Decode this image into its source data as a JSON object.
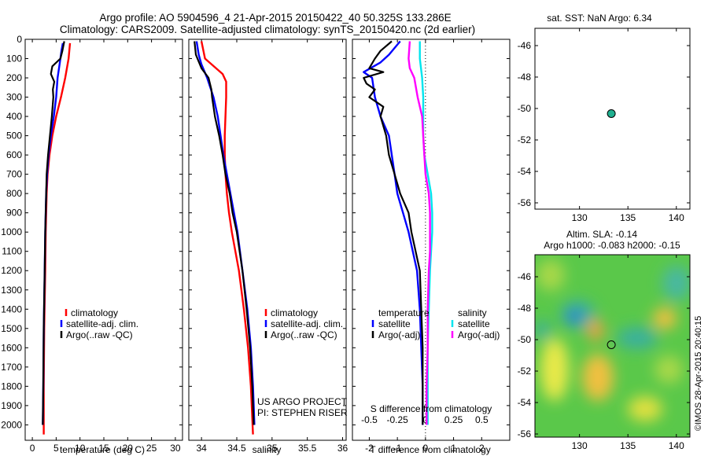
{
  "header": {
    "line1": "Argo profile: AO 5904596_4 21-Apr-2015 20150422_40 50.325S 133.286E",
    "line2": "Climatology: CARS2009. Satellite-adjusted climatology: synTS_20150420.nc (2d earlier)"
  },
  "colors": {
    "climatology": "#ff0000",
    "satellite": "#0000ff",
    "argo": "#000000",
    "sal_satellite": "#00e5ee",
    "sal_argo": "#ff00ff",
    "marker": "#20b090"
  },
  "chart_data": [
    {
      "id": "temperature",
      "type": "line",
      "xlabel": "temperature (deg C)",
      "ylabel": "",
      "xlim": [
        -1.5,
        31.5
      ],
      "ylim": [
        2080,
        0
      ],
      "x_ticks": [
        "0",
        "5",
        "10",
        "15",
        "20",
        "25",
        "30"
      ],
      "y_ticks": [
        "0",
        "100",
        "200",
        "300",
        "400",
        "500",
        "600",
        "700",
        "800",
        "900",
        "1000",
        "1100",
        "1200",
        "1300",
        "1400",
        "1500",
        "1600",
        "1700",
        "1800",
        "1900",
        "2000"
      ],
      "legend": [
        "climatology",
        "satellite-adj. clim.",
        "Argo(..raw -QC)"
      ],
      "series": [
        {
          "name": "climatology",
          "color": "red",
          "depth": [
            20,
            100,
            200,
            300,
            400,
            500,
            600,
            700,
            800,
            1000,
            1200,
            1500,
            1800,
            2050
          ],
          "values": [
            7.9,
            7.6,
            6.9,
            6.0,
            5.0,
            4.2,
            3.6,
            3.2,
            3.0,
            2.8,
            2.7,
            2.5,
            2.4,
            2.4
          ]
        },
        {
          "name": "satellite-adj. clim.",
          "color": "blue",
          "depth": [
            20,
            60,
            100,
            150,
            200,
            300,
            400,
            500,
            600,
            700,
            800,
            1000,
            1200,
            1500,
            1800,
            2000
          ],
          "values": [
            6.4,
            6.1,
            5.9,
            5.6,
            5.3,
            5.0,
            4.5,
            3.9,
            3.4,
            3.1,
            2.9,
            2.7,
            2.6,
            2.4,
            2.3,
            2.2
          ]
        },
        {
          "name": "Argo(..raw -QC)",
          "color": "black",
          "depth": [
            10,
            60,
            100,
            140,
            180,
            220,
            260,
            300,
            400,
            500,
            600,
            700,
            800,
            1000,
            1200,
            1500,
            1800,
            2000
          ],
          "values": [
            6.7,
            6.3,
            5.9,
            4.2,
            3.9,
            4.6,
            4.3,
            4.4,
            4.1,
            3.7,
            3.3,
            3.0,
            2.9,
            2.7,
            2.6,
            2.4,
            2.3,
            2.2
          ]
        }
      ]
    },
    {
      "id": "salinity",
      "type": "line",
      "xlabel": "salinity",
      "ylabel": "",
      "xlim": [
        33.82,
        36.05
      ],
      "ylim": [
        2080,
        0
      ],
      "x_ticks": [
        "34",
        "34.5",
        "35",
        "35.5",
        "36"
      ],
      "legend": [
        "climatology",
        "satellite-adj. clim.",
        "Argo(..raw -QC)"
      ],
      "annotations": [
        "US ARGO PROJECT",
        "PI: STEPHEN RISER"
      ],
      "series": [
        {
          "name": "climatology",
          "color": "red",
          "depth": [
            10,
            100,
            180,
            220,
            300,
            400,
            500,
            600,
            700,
            800,
            900,
            1000,
            1200,
            1400,
            1600,
            1800,
            2050
          ],
          "values": [
            34.0,
            34.05,
            34.3,
            34.35,
            34.35,
            34.34,
            34.33,
            34.33,
            34.34,
            34.36,
            34.39,
            34.43,
            34.53,
            34.6,
            34.66,
            34.7,
            34.73
          ]
        },
        {
          "name": "satellite-adj. clim.",
          "color": "blue",
          "depth": [
            10,
            80,
            130,
            200,
            300,
            400,
            500,
            600,
            700,
            800,
            900,
            1000,
            1200,
            1400,
            1600,
            1800,
            2000
          ],
          "values": [
            33.93,
            33.96,
            34.0,
            34.08,
            34.17,
            34.23,
            34.27,
            34.31,
            34.36,
            34.41,
            34.46,
            34.51,
            34.58,
            34.65,
            34.7,
            34.73,
            34.75
          ]
        },
        {
          "name": "Argo(..raw -QC)",
          "color": "black",
          "depth": [
            10,
            80,
            150,
            200,
            260,
            300,
            400,
            500,
            600,
            700,
            800,
            900,
            1000,
            1200,
            1400,
            1600,
            1800,
            2000
          ],
          "values": [
            33.9,
            33.92,
            34.0,
            34.1,
            34.14,
            34.15,
            34.19,
            34.25,
            34.3,
            34.34,
            34.4,
            34.44,
            34.5,
            34.58,
            34.64,
            34.69,
            34.72,
            34.74
          ]
        }
      ]
    },
    {
      "id": "difference",
      "type": "line",
      "xlabel": "T difference from climatology",
      "x2label": "S difference from climatology",
      "xlim": [
        -2.6,
        3.0
      ],
      "ylim": [
        2080,
        0
      ],
      "x_ticks": [
        "-2",
        "-1",
        "0",
        "1",
        "2"
      ],
      "x2_ticks": [
        "-0.5",
        "-0.25",
        "0",
        "0.25",
        "0.5"
      ],
      "legend_temperature": {
        "title": "temperature",
        "items": [
          "satellite",
          "Argo(-adj)"
        ]
      },
      "legend_salinity": {
        "title": "salinity",
        "items": [
          "satellite",
          "Argo(-adj)"
        ]
      },
      "series": [
        {
          "name": "T satellite",
          "color": "blue",
          "depth": [
            10,
            80,
            120,
            170,
            200,
            300,
            400,
            500,
            600,
            700,
            800,
            900,
            1000,
            1200,
            1400,
            1600,
            1800,
            2000
          ],
          "values": [
            -0.9,
            -1.3,
            -1.6,
            -2.2,
            -1.9,
            -1.8,
            -1.6,
            -1.3,
            -1.2,
            -1.1,
            -1.0,
            -0.8,
            -0.6,
            -0.3,
            -0.2,
            -0.15,
            -0.1,
            -0.1
          ]
        },
        {
          "name": "T Argo(-adj)",
          "color": "black",
          "depth": [
            10,
            60,
            100,
            150,
            170,
            200,
            230,
            260,
            300,
            350,
            400,
            500,
            600,
            700,
            800,
            900,
            1000,
            1200,
            1400,
            1600,
            1800,
            2000
          ],
          "values": [
            -1.2,
            -1.6,
            -1.8,
            -2.0,
            -1.5,
            -2.2,
            -2.1,
            -1.8,
            -2.0,
            -1.5,
            -1.6,
            -1.4,
            -1.3,
            -1.1,
            -0.9,
            -0.6,
            -0.5,
            -0.2,
            -0.15,
            -0.1,
            -0.1,
            -0.1
          ]
        },
        {
          "name": "S satellite",
          "color": "cyan",
          "depth": [
            10,
            100,
            200,
            300,
            400,
            500,
            600,
            700,
            800,
            900,
            1000,
            1100,
            1200,
            1400,
            1600,
            1800,
            2000
          ],
          "values": [
            -0.05,
            -0.05,
            -0.03,
            -0.02,
            -0.02,
            -0.02,
            -0.01,
            0.02,
            0.05,
            0.06,
            0.06,
            0.05,
            0.04,
            0.03,
            0.02,
            0.02,
            0.02
          ]
        },
        {
          "name": "S Argo(-adj)",
          "color": "magenta",
          "depth": [
            10,
            100,
            150,
            200,
            300,
            400,
            500,
            600,
            700,
            800,
            900,
            1000,
            1100,
            1200,
            1400,
            1600,
            1800,
            2000
          ],
          "values": [
            -0.14,
            -0.15,
            -0.14,
            -0.1,
            -0.07,
            -0.03,
            -0.02,
            -0.01,
            0.0,
            0.03,
            0.04,
            0.04,
            0.04,
            0.03,
            0.02,
            0.02,
            0.01,
            0.01
          ]
        }
      ]
    },
    {
      "id": "sst_map",
      "type": "scatter",
      "title": "sat. SST: NaN Argo: 6.34",
      "xlim": [
        125.4,
        141.4
      ],
      "ylim": [
        -56.4,
        -44.9
      ],
      "x_ticks": [
        "130",
        "135",
        "140"
      ],
      "y_ticks": [
        "-46",
        "-48",
        "-50",
        "-52",
        "-54",
        "-56"
      ],
      "points": [
        {
          "x": 133.286,
          "y": -50.325
        }
      ]
    },
    {
      "id": "sla_map",
      "type": "heatmap",
      "title_line1": "Altim. SLA: -0.14",
      "title_line2": "Argo h1000: -0.083 h2000: -0.15",
      "xlim": [
        125.4,
        141.4
      ],
      "ylim": [
        -56.2,
        -44.6
      ],
      "x_ticks": [
        "130",
        "135",
        "140"
      ],
      "y_ticks": [
        "-46",
        "-48",
        "-50",
        "-52",
        "-54",
        "-56"
      ],
      "points": [
        {
          "x": 133.286,
          "y": -50.325
        }
      ],
      "side_text": "©IMOS 28-Apr-2015 20:40:15"
    }
  ]
}
